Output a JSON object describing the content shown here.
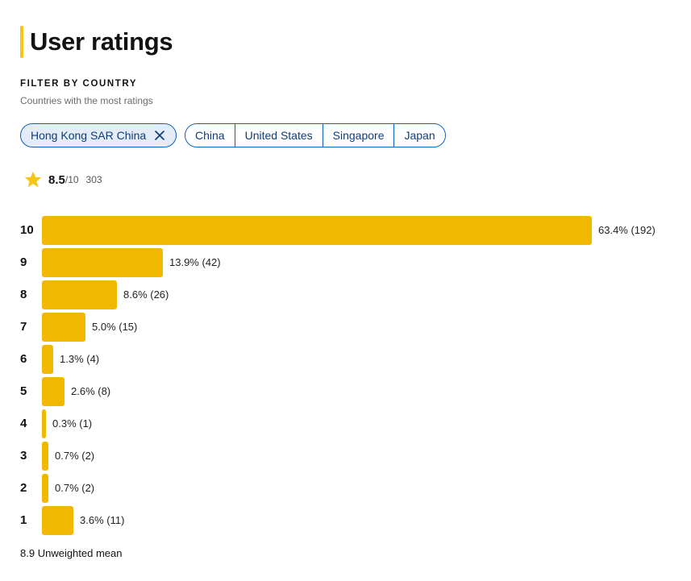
{
  "header": {
    "title": "User ratings",
    "accent_color": "#f5c518"
  },
  "filter": {
    "heading": "FILTER BY COUNTRY",
    "subheading": "Countries with the most ratings",
    "active_chip": {
      "label": "Hong Kong SAR China",
      "icon": "close-icon"
    },
    "options": [
      "China",
      "United States",
      "Singapore",
      "Japan"
    ]
  },
  "summary": {
    "icon": "star-icon",
    "score": "8.5",
    "scale": "/10",
    "count": "303"
  },
  "chart_data": {
    "type": "bar",
    "orientation": "horizontal",
    "bar_color": "#f0b900",
    "categories": [
      "10",
      "9",
      "8",
      "7",
      "6",
      "5",
      "4",
      "3",
      "2",
      "1"
    ],
    "values": [
      63.4,
      13.9,
      8.6,
      5.0,
      1.3,
      2.6,
      0.3,
      0.7,
      0.7,
      3.6
    ],
    "counts": [
      192,
      42,
      26,
      15,
      4,
      8,
      1,
      2,
      2,
      11
    ],
    "labels": [
      "63.4% (192)",
      "13.9% (42)",
      "8.6% (26)",
      "5.0% (15)",
      "1.3% (4)",
      "2.6% (8)",
      "0.3% (1)",
      "0.7% (2)",
      "0.7% (2)",
      "3.6% (11)"
    ]
  },
  "footer": {
    "mean_value": "8.9",
    "mean_label": "Unweighted mean"
  }
}
